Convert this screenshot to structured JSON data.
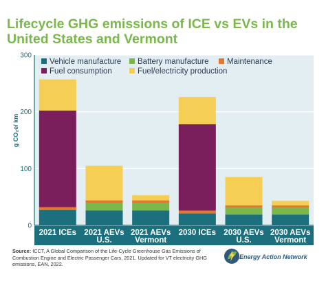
{
  "title": "Lifecycle GHG emissions of ICE vs EVs in the United States and Vermont",
  "source_label": "Source:",
  "source_text": "ICCT, A Global Comparison of the Life-Cycle Greenhouse Gas Emissions of Combustion Engine and Electric Passenger Cars, 2021. Updated for VT electricity GHG emissions, EAN, 2022.",
  "logo_text": "Energy Action Network",
  "colors": {
    "title": "#7ab84a",
    "axis": "#1c6f7d",
    "background": "#e3eef3"
  },
  "chart_data": {
    "type": "bar",
    "stacked": true,
    "ylabel": "g CO₂e/ km",
    "ylim": [
      0,
      300
    ],
    "yticks": [
      0,
      100,
      200,
      300
    ],
    "legend_position": "top",
    "categories": [
      [
        "2021 ICEs"
      ],
      [
        "2021 AEVs",
        "U.S."
      ],
      [
        "2021 AEVs",
        "Vermont"
      ],
      [
        "2030 ICEs"
      ],
      [
        "2030 AEVs",
        "U.S."
      ],
      [
        "2030 AEVs",
        "Vermont"
      ]
    ],
    "series": [
      {
        "name": "Vehicle manufacture",
        "color": "#1c6f7d",
        "values": [
          27,
          26,
          26,
          21,
          19,
          19
        ]
      },
      {
        "name": "Battery manufacture",
        "color": "#7ab84a",
        "values": [
          0,
          13,
          13,
          0,
          12,
          12
        ]
      },
      {
        "name": "Maintenance",
        "color": "#e2772e",
        "values": [
          5,
          5,
          5,
          5,
          4,
          4
        ]
      },
      {
        "name": "Fuel consumption",
        "color": "#7a1f5c",
        "values": [
          170,
          0,
          0,
          152,
          0,
          0
        ]
      },
      {
        "name": "Fuel/electricity production",
        "color": "#f5cf55",
        "values": [
          55,
          61,
          9,
          48,
          50,
          8
        ]
      }
    ]
  }
}
